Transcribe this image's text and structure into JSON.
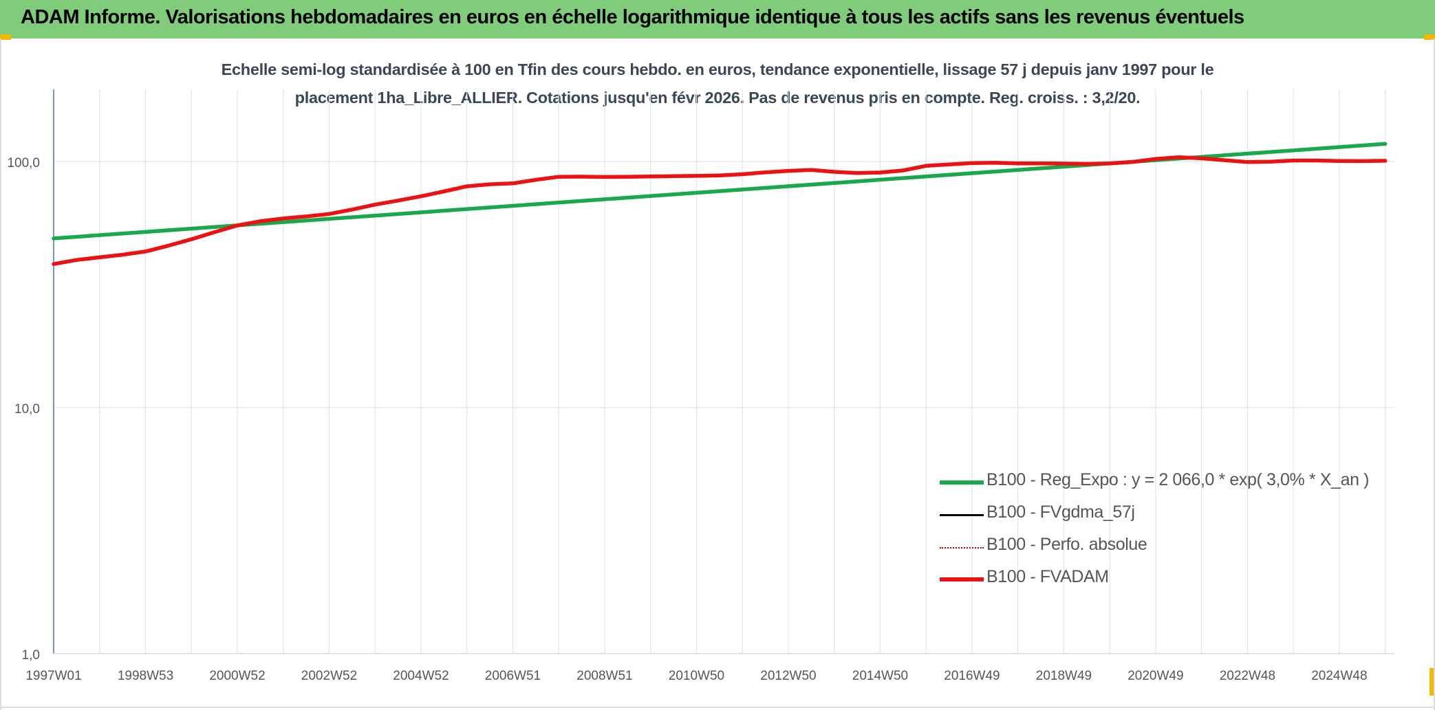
{
  "header": {
    "title": "ADAM Informe. Valorisations hebdomadaires en euros en échelle logarithmique identique à tous les actifs sans les revenus éventuels"
  },
  "colors": {
    "banner_bg": "#7fcc7a",
    "accent_corner": "#f5b800",
    "trend_line": "#1aa84c",
    "fvadam_line": "#ee1111",
    "fvgdma_line": "#000000",
    "perfo_line": "#cc0000",
    "y_axis_line": "#5a7fb5",
    "gridline": "#dfe5ec"
  },
  "chart_data": {
    "type": "line",
    "title_lines": [
      "Echelle semi-log standardisée à 100 en Tfin des cours hebdo. en euros, tendance exponentielle, lissage 57 j depuis janv 1997 pour le",
      "placement 1ha_Libre_ALLIER. Cotations jusqu'en févr 2026. Pas de revenus pris en compte. Reg. croiss. : 3,2/20."
    ],
    "y_scale": "log",
    "ylim": [
      1,
      200
    ],
    "y_ticks": [
      {
        "value": 1,
        "label": "1,0"
      },
      {
        "value": 10,
        "label": "10,0"
      },
      {
        "value": 100,
        "label": "100,0"
      }
    ],
    "xlim": [
      1997.0,
      2026.2
    ],
    "x_ticks": [
      {
        "x": 1997.0,
        "label": "1997W01"
      },
      {
        "x": 1999.0,
        "label": "1998W53"
      },
      {
        "x": 2001.0,
        "label": "2000W52"
      },
      {
        "x": 2003.0,
        "label": "2002W52"
      },
      {
        "x": 2005.0,
        "label": "2004W52"
      },
      {
        "x": 2007.0,
        "label": "2006W51"
      },
      {
        "x": 2009.0,
        "label": "2008W51"
      },
      {
        "x": 2011.0,
        "label": "2010W50"
      },
      {
        "x": 2013.0,
        "label": "2012W50"
      },
      {
        "x": 2015.0,
        "label": "2014W50"
      },
      {
        "x": 2017.0,
        "label": "2016W49"
      },
      {
        "x": 2019.0,
        "label": "2018W49"
      },
      {
        "x": 2021.0,
        "label": "2020W49"
      },
      {
        "x": 2023.0,
        "label": "2022W48"
      },
      {
        "x": 2025.0,
        "label": "2024W48"
      }
    ],
    "grid": true,
    "legend_position": "right",
    "series": [
      {
        "name": "B100 - Reg_Expo : y = 2 066,0 * exp( 3,0% *  X_an )",
        "style": "trend",
        "x": [
          1997.0,
          2026.0
        ],
        "values": [
          48.7,
          118.0
        ]
      },
      {
        "name": "B100 - FVgdma_57j",
        "style": "legend-only",
        "x": [],
        "values": []
      },
      {
        "name": "B100 - Perfo. absolue",
        "style": "legend-only-dotted",
        "x": [],
        "values": []
      },
      {
        "name": "B100 - FVADAM",
        "style": "main",
        "x": [
          1997.0,
          1997.5,
          1998.0,
          1998.5,
          1999.0,
          1999.5,
          2000.0,
          2000.5,
          2001.0,
          2001.5,
          2002.0,
          2002.5,
          2003.0,
          2003.5,
          2004.0,
          2004.5,
          2005.0,
          2005.5,
          2006.0,
          2006.5,
          2007.0,
          2007.5,
          2008.0,
          2008.5,
          2009.0,
          2009.5,
          2010.0,
          2010.5,
          2011.0,
          2011.5,
          2012.0,
          2012.5,
          2013.0,
          2013.5,
          2014.0,
          2014.5,
          2015.0,
          2015.5,
          2016.0,
          2016.5,
          2017.0,
          2017.5,
          2018.0,
          2018.5,
          2019.0,
          2019.5,
          2020.0,
          2020.5,
          2021.0,
          2021.5,
          2022.0,
          2022.5,
          2023.0,
          2023.5,
          2024.0,
          2024.5,
          2025.0,
          2025.5,
          2026.0
        ],
        "values": [
          38.3,
          39.8,
          40.8,
          41.8,
          43.1,
          45.5,
          48.3,
          51.6,
          55.0,
          57.2,
          58.7,
          59.8,
          61.2,
          63.8,
          66.8,
          69.4,
          72.2,
          75.6,
          79.3,
          80.8,
          81.5,
          84.3,
          86.7,
          86.8,
          86.5,
          86.7,
          86.9,
          87.2,
          87.4,
          87.8,
          88.8,
          90.4,
          91.6,
          92.4,
          90.8,
          89.8,
          90.2,
          92.0,
          96.0,
          97.3,
          98.6,
          98.9,
          98.3,
          98.3,
          98.1,
          97.8,
          98.3,
          99.6,
          102.5,
          104.1,
          103.0,
          101.2,
          99.5,
          99.8,
          101.0,
          101.0,
          100.5,
          100.4,
          100.7
        ]
      }
    ]
  }
}
